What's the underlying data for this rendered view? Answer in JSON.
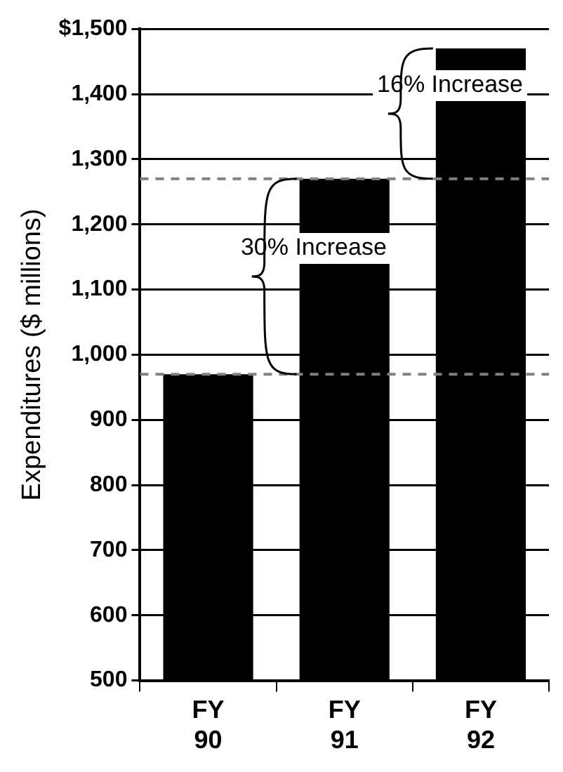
{
  "chart_data": {
    "type": "bar",
    "ylabel": "Expenditures ($ millions)",
    "categories": [
      "FY 90",
      "FY 91",
      "FY 92"
    ],
    "values": [
      970,
      1270,
      1470
    ],
    "color": "#000000",
    "ylim": [
      500,
      1500
    ],
    "yticks": [
      500,
      600,
      700,
      800,
      900,
      {
        "value": 1000,
        "label": "1,000"
      },
      {
        "value": 1100,
        "label": "1,100"
      },
      {
        "value": 1200,
        "label": "1,200"
      },
      {
        "value": 1300,
        "label": "1,300"
      },
      {
        "value": 1400,
        "label": "1,400"
      },
      {
        "value": 1500,
        "label": "$1,500"
      }
    ],
    "grid": "y",
    "legend": false,
    "ref_lines": [
      {
        "axis": "y",
        "value": 970,
        "line_style": "dashed",
        "color": "#808080"
      },
      {
        "axis": "y",
        "value": 1270,
        "line_style": "dashed",
        "color": "#808080"
      }
    ],
    "annotations": [
      {
        "text": "30% Increase",
        "x": "FY 91",
        "y": 1270
      },
      {
        "text": "16% Increase",
        "x": "FY 92",
        "y": 1470
      }
    ]
  }
}
